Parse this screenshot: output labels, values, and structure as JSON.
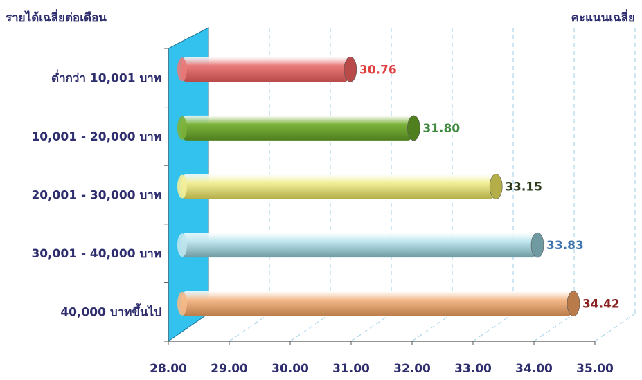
{
  "chart_data": {
    "type": "bar",
    "orientation": "horizontal",
    "category_axis_title": "รายได้เฉลี่ยต่อเดือน",
    "value_axis_title": "คะแนนเฉลี่ย",
    "categories": [
      "ต่ำกว่า 10,001 บาท",
      "10,001 - 20,000 บาท",
      "20,001 - 30,000 บาท",
      "30,001 - 40,000 บาท",
      "40,000 บาทขึ้นไป"
    ],
    "values": [
      30.76,
      31.8,
      33.15,
      33.83,
      34.42
    ],
    "value_labels": [
      "30.76",
      "31.80",
      "33.15",
      "33.83",
      "34.42"
    ],
    "bar_colors": [
      "#e87a7a",
      "#7cb33a",
      "#f2ef9a",
      "#bfe6ee",
      "#f4b98a"
    ],
    "bar_end_colors": [
      "#b84a4a",
      "#4f7f1f",
      "#b3ae48",
      "#6f9aa2",
      "#b97b49"
    ],
    "label_colors": [
      "#e04040",
      "#3f8a3f",
      "#2a3a1a",
      "#3f73ad",
      "#8a2020"
    ],
    "xlim": [
      28.0,
      35.0
    ],
    "x_ticks": [
      "28.00",
      "29.00",
      "30.00",
      "31.00",
      "32.00",
      "33.00",
      "34.00",
      "35.00"
    ],
    "grid": true,
    "wall_color": "#33c2ee"
  }
}
